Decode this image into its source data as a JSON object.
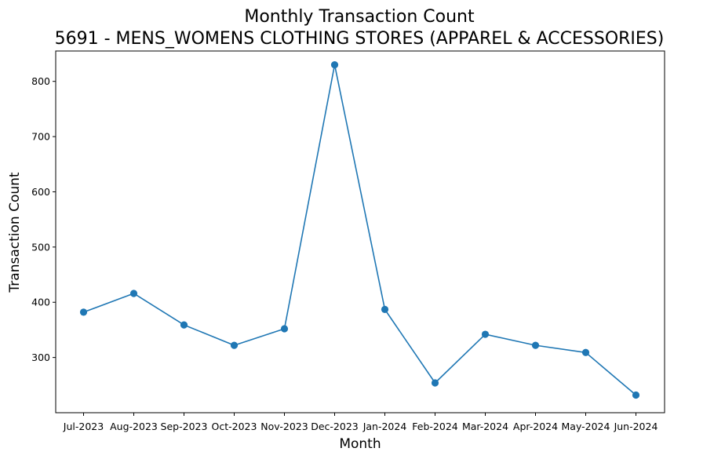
{
  "chart_data": {
    "type": "line",
    "title": "Monthly Transaction Count",
    "subtitle": "5691 - MENS_WOMENS CLOTHING STORES (APPAREL & ACCESSORIES)",
    "xlabel": "Month",
    "ylabel": "Transaction Count",
    "categories": [
      "Jul-2023",
      "Aug-2023",
      "Sep-2023",
      "Oct-2023",
      "Nov-2023",
      "Dec-2023",
      "Jan-2024",
      "Feb-2024",
      "Mar-2024",
      "Apr-2024",
      "May-2024",
      "Jun-2024"
    ],
    "values": [
      382,
      416,
      359,
      322,
      352,
      830,
      387,
      254,
      342,
      322,
      309,
      232
    ],
    "ylim": [
      200,
      855
    ],
    "yticks": [
      300,
      400,
      500,
      600,
      700,
      800
    ],
    "grid": false,
    "marker": "circle",
    "color": "#1f77b4"
  }
}
